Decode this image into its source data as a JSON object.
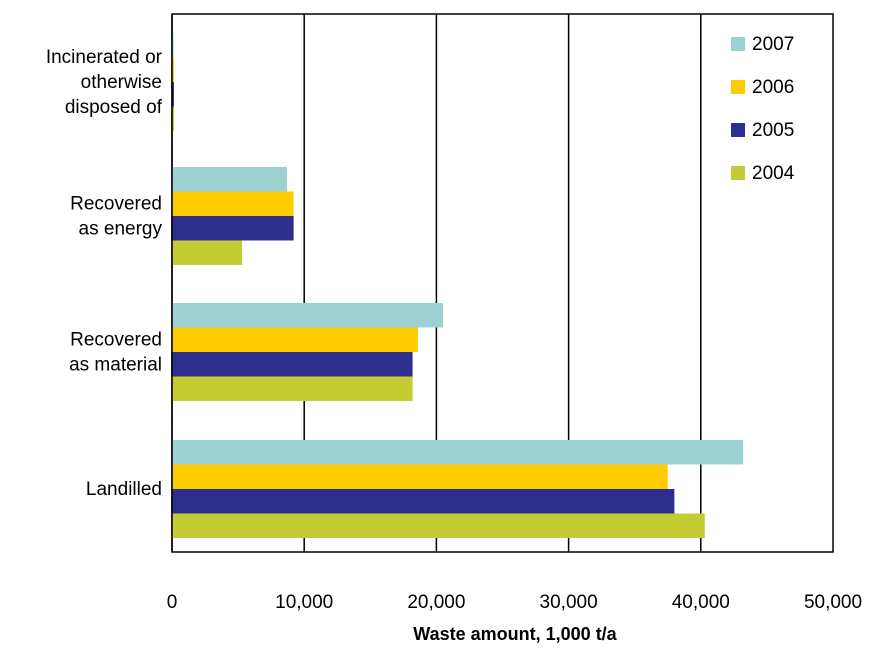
{
  "chart_data": {
    "type": "bar",
    "orientation": "horizontal",
    "categories": [
      [
        "Incinerated or",
        "otherwise",
        "disposed of"
      ],
      [
        "Recovered",
        "as energy"
      ],
      [
        "Recovered",
        "as material"
      ],
      [
        "Landilled"
      ]
    ],
    "series": [
      {
        "name": "2007",
        "color": "#9dd0d0",
        "values": [
          100,
          8700,
          20500,
          43200
        ]
      },
      {
        "name": "2006",
        "color": "#ffcc00",
        "values": [
          150,
          9200,
          18600,
          37500
        ]
      },
      {
        "name": "2005",
        "color": "#2e2e8f",
        "values": [
          150,
          9200,
          18200,
          38000
        ]
      },
      {
        "name": "2004",
        "color": "#c4cc33",
        "values": [
          150,
          5300,
          18200,
          40300
        ]
      }
    ],
    "xlim": [
      0,
      50000
    ],
    "xticks": [
      0,
      10000,
      20000,
      30000,
      40000,
      50000
    ],
    "xtick_labels": [
      "0",
      "10,000",
      "20,000",
      "30,000",
      "40,000",
      "50,000"
    ],
    "xlabel": "Waste amount, 1,000 t/a",
    "ylabel": "",
    "grid": "vertical",
    "legend_position": "top-right"
  }
}
